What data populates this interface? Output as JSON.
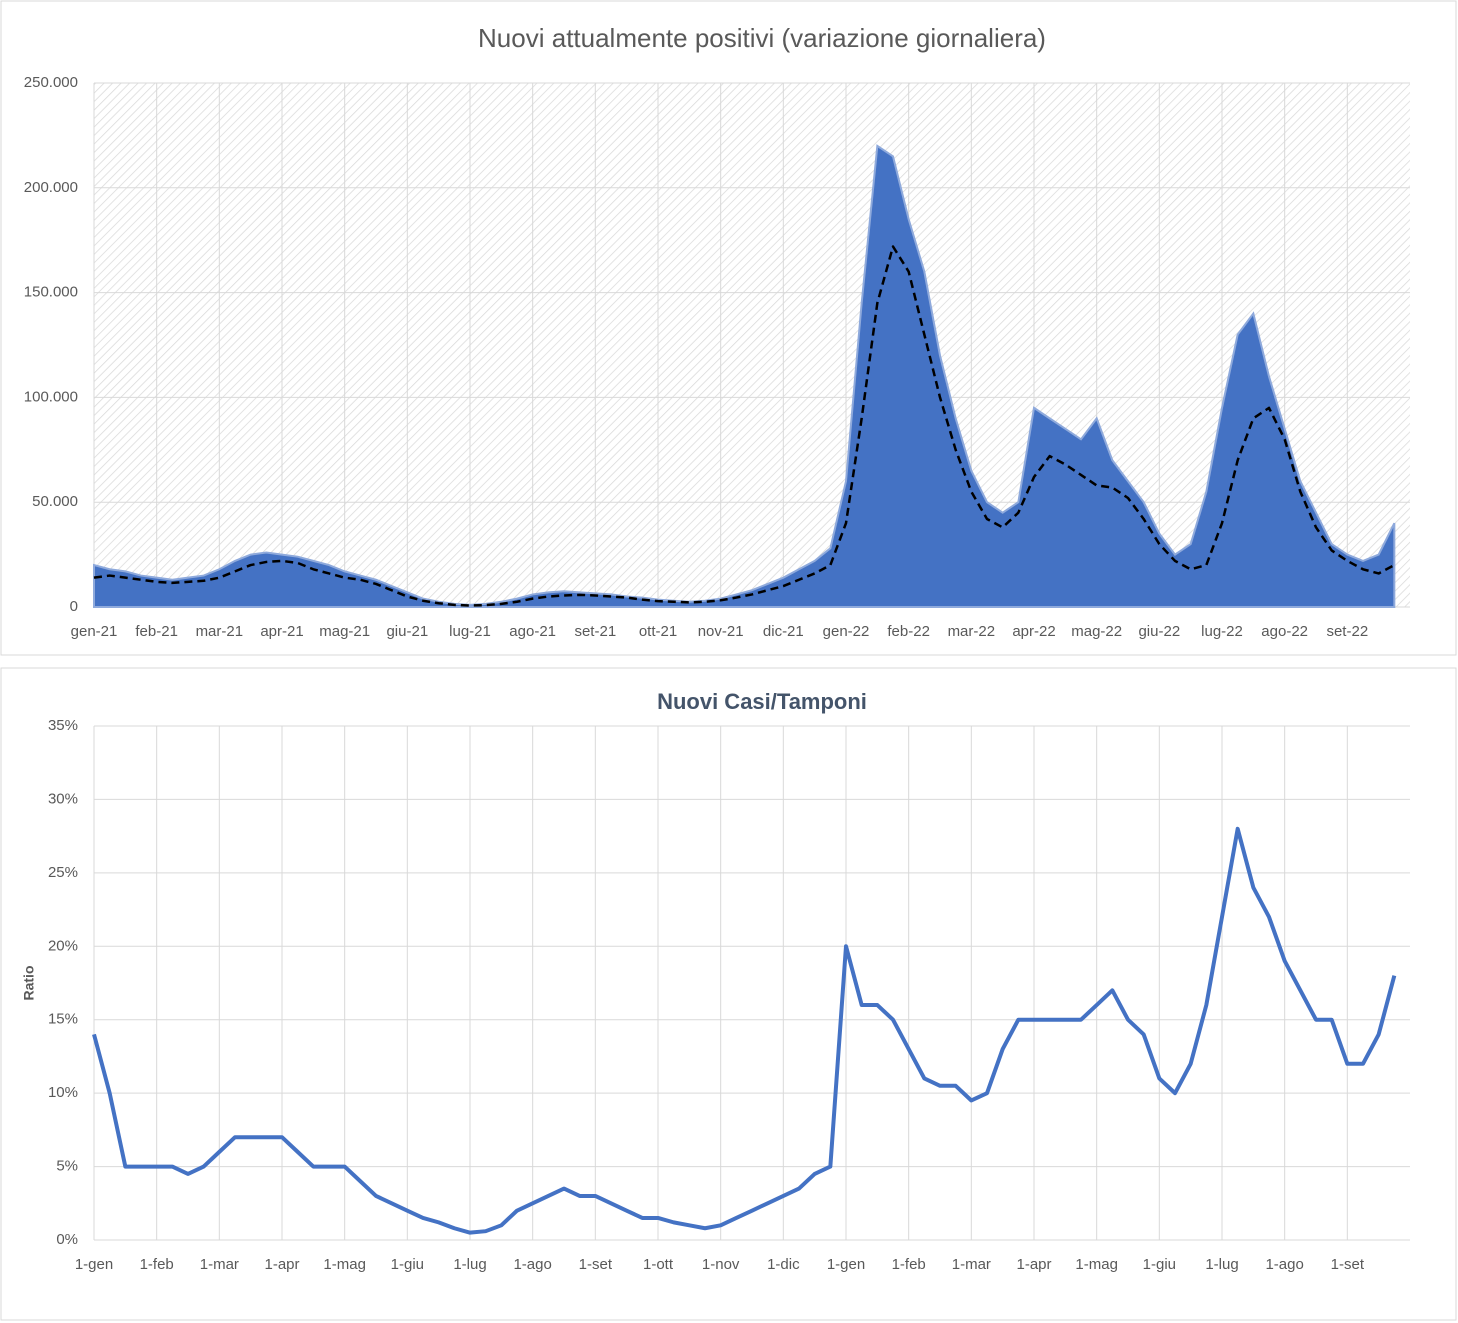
{
  "chart_data": [
    {
      "type": "area",
      "title": "Nuovi attualmente positivi (variazione giornaliera)",
      "categories": [
        "gen-21",
        null,
        null,
        null,
        "feb-21",
        null,
        null,
        null,
        "mar-21",
        null,
        null,
        null,
        "apr-21",
        null,
        null,
        null,
        "mag-21",
        null,
        null,
        null,
        "giu-21",
        null,
        null,
        null,
        "lug-21",
        null,
        null,
        null,
        "ago-21",
        null,
        null,
        null,
        "set-21",
        null,
        null,
        null,
        "ott-21",
        null,
        null,
        null,
        "nov-21",
        null,
        null,
        null,
        "dic-21",
        null,
        null,
        null,
        "gen-22",
        null,
        null,
        null,
        "feb-22",
        null,
        null,
        null,
        "mar-22",
        null,
        null,
        null,
        "apr-22",
        null,
        null,
        null,
        "mag-22",
        null,
        null,
        null,
        "giu-22",
        null,
        null,
        null,
        "lug-22",
        null,
        null,
        null,
        "ago-22",
        null,
        null,
        null,
        "set-22",
        null,
        null,
        null
      ],
      "series": [
        {
          "type": "area",
          "color": "#4472c4",
          "values": [
            20000,
            18000,
            17000,
            15000,
            14000,
            13000,
            14000,
            15000,
            18000,
            22000,
            25000,
            26000,
            25000,
            24000,
            22000,
            20000,
            17000,
            15000,
            13000,
            10000,
            7000,
            4000,
            2500,
            1500,
            1000,
            1500,
            2500,
            4000,
            6000,
            7000,
            7500,
            7000,
            6500,
            6000,
            5000,
            4500,
            3500,
            3000,
            2500,
            3000,
            4000,
            6000,
            8000,
            11000,
            14000,
            18000,
            22000,
            28000,
            60000,
            145000,
            220000,
            215000,
            185000,
            160000,
            120000,
            90000,
            65000,
            50000,
            45000,
            50000,
            95000,
            90000,
            85000,
            80000,
            90000,
            70000,
            60000,
            50000,
            35000,
            25000,
            30000,
            55000,
            95000,
            130000,
            140000,
            110000,
            85000,
            60000,
            45000,
            30000,
            25000,
            22000,
            25000,
            40000
          ]
        },
        {
          "type": "line",
          "color": "#000000",
          "dashed": true,
          "values": [
            14000,
            15000,
            14000,
            13000,
            12000,
            11500,
            12000,
            12500,
            14000,
            17000,
            20000,
            21500,
            22000,
            21000,
            18000,
            16000,
            14000,
            13000,
            11000,
            8000,
            5000,
            3000,
            1800,
            1000,
            700,
            900,
            1500,
            2500,
            4000,
            5000,
            5500,
            5800,
            5500,
            5000,
            4500,
            3500,
            2800,
            2500,
            2200,
            2500,
            3200,
            4500,
            6000,
            8000,
            10000,
            13000,
            16000,
            20000,
            40000,
            90000,
            145000,
            172000,
            160000,
            130000,
            100000,
            75000,
            55000,
            42000,
            38000,
            45000,
            62000,
            72000,
            68000,
            63000,
            58000,
            57000,
            52000,
            42000,
            30000,
            22000,
            18000,
            20000,
            40000,
            70000,
            90000,
            95000,
            80000,
            55000,
            38000,
            27000,
            22000,
            18000,
            16000,
            20000
          ]
        }
      ],
      "ylim": [
        0,
        250000
      ],
      "yticks": [
        0,
        {
          "value": 50000,
          "label": "50.000"
        },
        {
          "value": 100000,
          "label": "100.000"
        },
        {
          "value": 150000,
          "label": "150.000"
        },
        {
          "value": 200000,
          "label": "200.000"
        },
        {
          "value": 250000,
          "label": "250.000"
        }
      ],
      "grid": true
    },
    {
      "type": "line",
      "title": "Nuovi Casi/Tamponi",
      "y_label": "Ratio",
      "categories": [
        "1-gen",
        null,
        null,
        null,
        "1-feb",
        null,
        null,
        null,
        "1-mar",
        null,
        null,
        null,
        "1-apr",
        null,
        null,
        null,
        "1-mag",
        null,
        null,
        null,
        "1-giu",
        null,
        null,
        null,
        "1-lug",
        null,
        null,
        null,
        "1-ago",
        null,
        null,
        null,
        "1-set",
        null,
        null,
        null,
        "1-ott",
        null,
        null,
        null,
        "1-nov",
        null,
        null,
        null,
        "1-dic",
        null,
        null,
        null,
        "1-gen",
        null,
        null,
        null,
        "1-feb",
        null,
        null,
        null,
        "1-mar",
        null,
        null,
        null,
        "1-apr",
        null,
        null,
        null,
        "1-mag",
        null,
        null,
        null,
        "1-giu",
        null,
        null,
        null,
        "1-lug",
        null,
        null,
        null,
        "1-ago",
        null,
        null,
        null,
        "1-set",
        null,
        null,
        null
      ],
      "series": [
        {
          "type": "line",
          "color": "#4472c4",
          "values": [
            14,
            10,
            5,
            5,
            5,
            5,
            4.5,
            5,
            6,
            7,
            7,
            7,
            7,
            6,
            5,
            5,
            5,
            4,
            3,
            2.5,
            2,
            1.5,
            1.2,
            0.8,
            0.5,
            0.6,
            1,
            2,
            2.5,
            3,
            3.5,
            3,
            3,
            2.5,
            2,
            1.5,
            1.5,
            1.2,
            1,
            0.8,
            1,
            1.5,
            2,
            2.5,
            3,
            3.5,
            4.5,
            5,
            20,
            16,
            16,
            15,
            13,
            11,
            10.5,
            10.5,
            9.5,
            10,
            13,
            15,
            15,
            15,
            15,
            15,
            16,
            17,
            15,
            14,
            11,
            10,
            12,
            16,
            22,
            28,
            24,
            22,
            19,
            17,
            15,
            15,
            12,
            12,
            14,
            18
          ]
        }
      ],
      "ylim": [
        0,
        35
      ],
      "yticks": [
        {
          "value": 0,
          "label": "0%"
        },
        {
          "value": 5,
          "label": "5%"
        },
        {
          "value": 10,
          "label": "10%"
        },
        {
          "value": 15,
          "label": "15%"
        },
        {
          "value": 20,
          "label": "20%"
        },
        {
          "value": 25,
          "label": "25%"
        },
        {
          "value": 30,
          "label": "30%"
        },
        {
          "value": 35,
          "label": "35%"
        }
      ],
      "grid": true
    }
  ]
}
